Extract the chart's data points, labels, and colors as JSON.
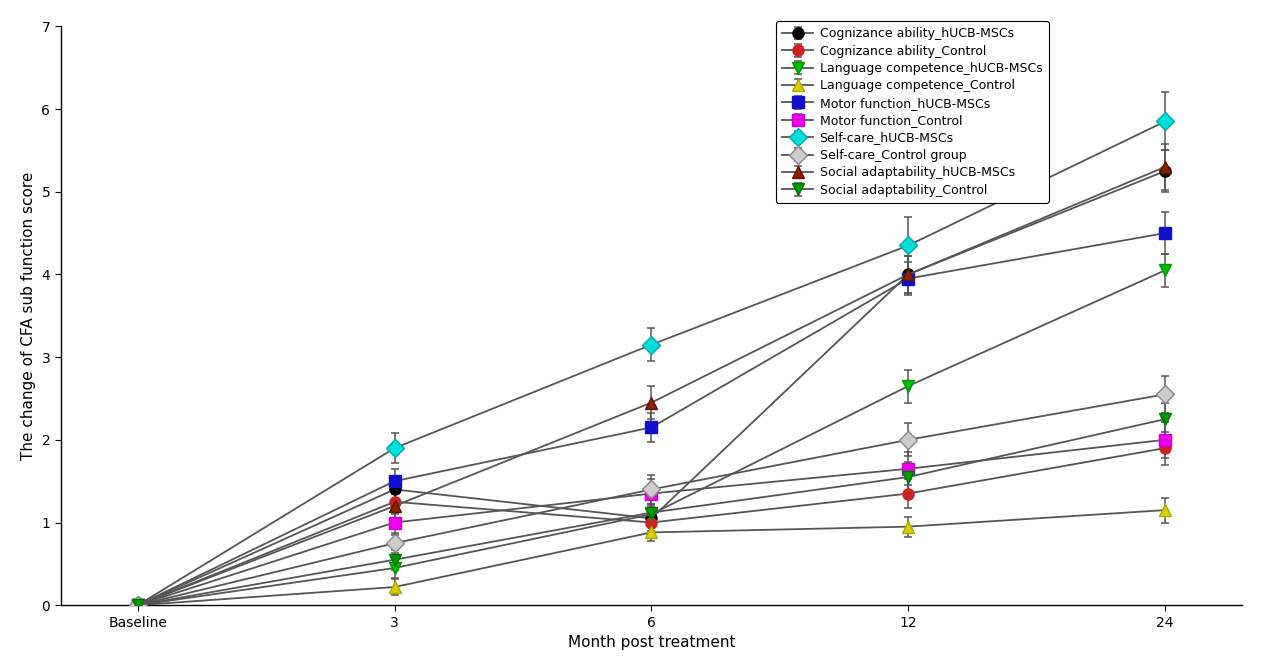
{
  "x_labels": [
    "Baseline",
    "3",
    "6",
    "12",
    "24"
  ],
  "xlabel": "Month post treatment",
  "ylabel": "The change of CFA sub function score",
  "ylim": [
    0,
    7
  ],
  "yticks": [
    0,
    1,
    2,
    3,
    4,
    5,
    6,
    7
  ],
  "line_color": "#555555",
  "ecolor": "#555555",
  "series": [
    {
      "label": "Cognizance ability_hUCB-MSCs",
      "marker": "o",
      "markerfacecolor": "#000000",
      "markeredgecolor": "#000000",
      "markersize": 8,
      "values": [
        0,
        1.4,
        1.05,
        4.0,
        5.25
      ],
      "errors": [
        0,
        0.15,
        0.15,
        0.22,
        0.25
      ]
    },
    {
      "label": "Cognizance ability_Control",
      "marker": "o",
      "markerfacecolor": "#cc2222",
      "markeredgecolor": "#cc2222",
      "markersize": 8,
      "values": [
        0,
        1.25,
        1.0,
        1.35,
        1.9
      ],
      "errors": [
        0,
        0.15,
        0.15,
        0.18,
        0.2
      ]
    },
    {
      "label": "Language competence_hUCB-MSCs",
      "marker": "v",
      "markerfacecolor": "#00bb00",
      "markeredgecolor": "#009900",
      "markersize": 9,
      "values": [
        0,
        0.45,
        1.1,
        2.65,
        4.05
      ],
      "errors": [
        0,
        0.12,
        0.12,
        0.2,
        0.2
      ]
    },
    {
      "label": "Language competence_Control",
      "marker": "^",
      "markerfacecolor": "#ddcc00",
      "markeredgecolor": "#aaaa00",
      "markersize": 9,
      "values": [
        0,
        0.22,
        0.88,
        0.95,
        1.15
      ],
      "errors": [
        0,
        0.1,
        0.1,
        0.12,
        0.15
      ]
    },
    {
      "label": "Motor function_hUCB-MSCs",
      "marker": "s",
      "markerfacecolor": "#1111cc",
      "markeredgecolor": "#1111cc",
      "markersize": 8,
      "values": [
        0,
        1.5,
        2.15,
        3.95,
        4.5
      ],
      "errors": [
        0,
        0.15,
        0.18,
        0.2,
        0.25
      ]
    },
    {
      "label": "Motor function_Control",
      "marker": "s",
      "markerfacecolor": "#ee00ee",
      "markeredgecolor": "#cc00cc",
      "markersize": 8,
      "values": [
        0,
        1.0,
        1.35,
        1.65,
        2.0
      ],
      "errors": [
        0,
        0.15,
        0.18,
        0.2,
        0.22
      ]
    },
    {
      "label": "Self-care_hUCB-MSCs",
      "marker": "D",
      "markerfacecolor": "#00dddd",
      "markeredgecolor": "#00aaaa",
      "markersize": 9,
      "values": [
        0,
        1.9,
        3.15,
        4.35,
        5.85
      ],
      "errors": [
        0,
        0.18,
        0.2,
        0.35,
        0.35
      ]
    },
    {
      "label": "Self-care_Control group",
      "marker": "D",
      "markerfacecolor": "#cccccc",
      "markeredgecolor": "#888888",
      "markersize": 9,
      "values": [
        0,
        0.75,
        1.4,
        2.0,
        2.55
      ],
      "errors": [
        0,
        0.12,
        0.18,
        0.2,
        0.22
      ]
    },
    {
      "label": "Social adaptability_hUCB-MSCs",
      "marker": "^",
      "markerfacecolor": "#882200",
      "markeredgecolor": "#661100",
      "markersize": 9,
      "values": [
        0,
        1.2,
        2.45,
        4.0,
        5.3
      ],
      "errors": [
        0,
        0.15,
        0.2,
        0.22,
        0.28
      ]
    },
    {
      "label": "Social adaptability_Control",
      "marker": "v",
      "markerfacecolor": "#009900",
      "markeredgecolor": "#007700",
      "markersize": 9,
      "values": [
        0,
        0.55,
        1.12,
        1.55,
        2.25
      ],
      "errors": [
        0,
        0.12,
        0.15,
        0.18,
        0.2
      ]
    }
  ],
  "background_color": "#ffffff",
  "plot_bg_color": "#ffffff",
  "legend_fontsize": 9,
  "axis_fontsize": 11,
  "tick_fontsize": 10
}
